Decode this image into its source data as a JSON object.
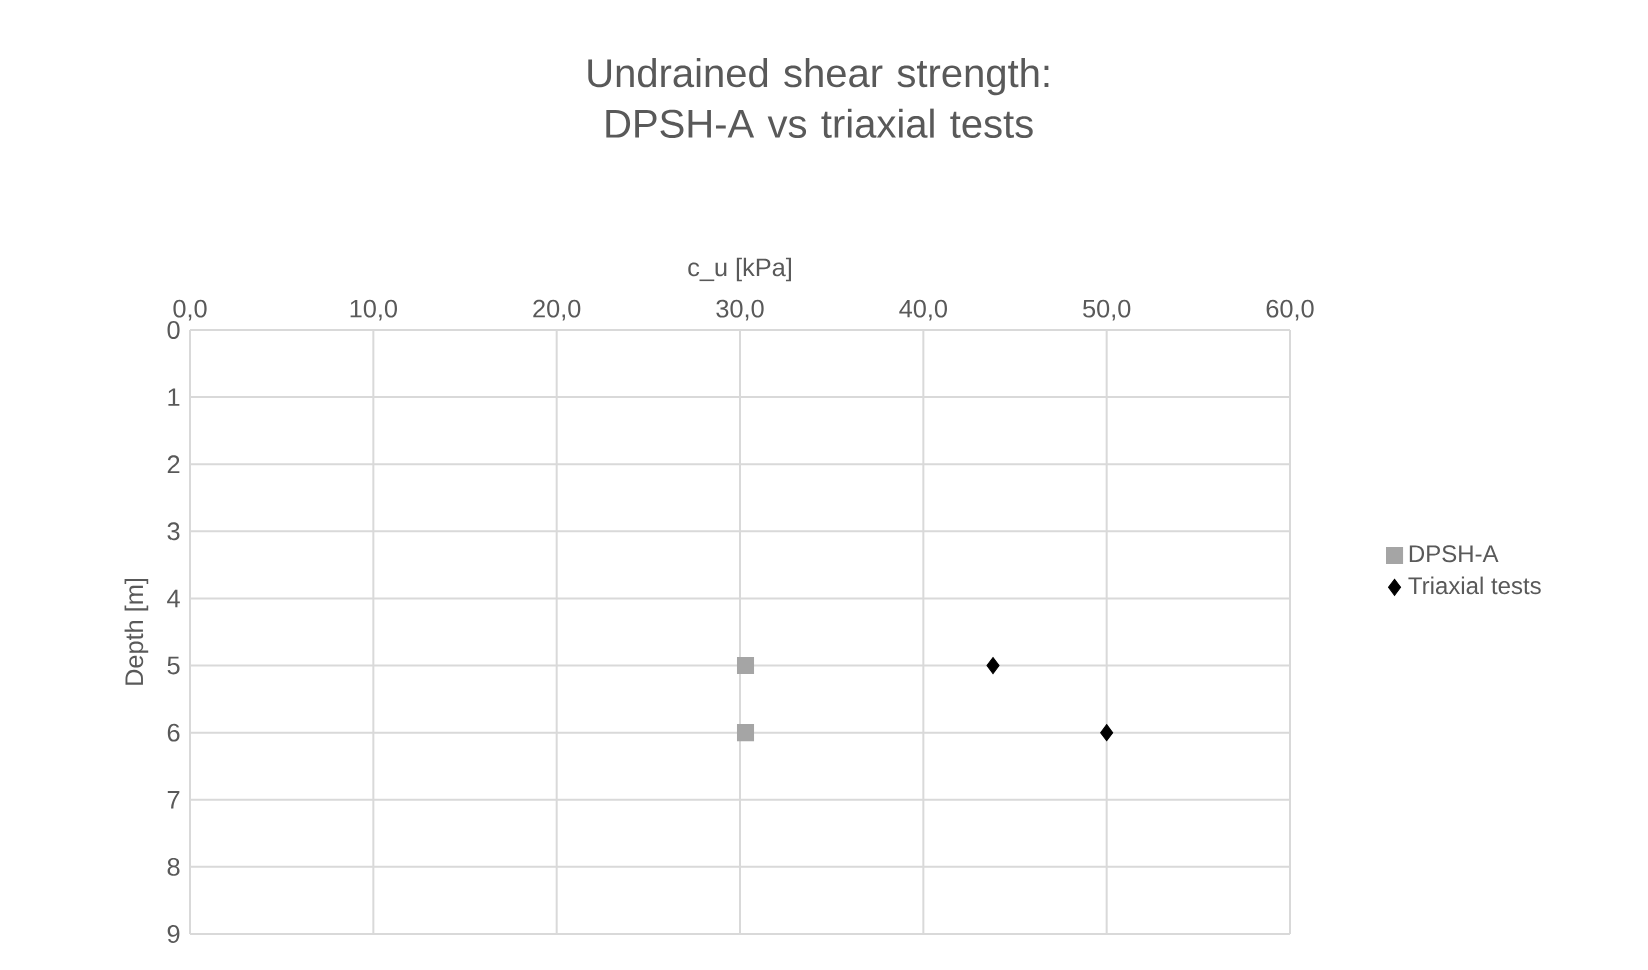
{
  "chart_data": {
    "type": "scatter",
    "title": "Undrained shear strength: DPSH-A vs triaxial tests",
    "xlabel": "c_u [kPa]",
    "ylabel": "Depth [m]",
    "series": [
      {
        "name": "DPSH-A",
        "color": "#a5a5a5",
        "marker": "square",
        "x": [
          30.3,
          30.3
        ],
        "values": [
          5,
          6
        ]
      },
      {
        "name": "Triaxial tests",
        "color": "#000000",
        "marker": "diamond",
        "x": [
          43.8,
          50.0
        ],
        "values": [
          5,
          6
        ]
      }
    ],
    "xlim": [
      0,
      60
    ],
    "xticks": [
      {
        "value": 0,
        "label": "0,0"
      },
      {
        "value": 10,
        "label": "10,0"
      },
      {
        "value": 20,
        "label": "20,0"
      },
      {
        "value": 30,
        "label": "30,0"
      },
      {
        "value": 40,
        "label": "40,0"
      },
      {
        "value": 50,
        "label": "50,0"
      },
      {
        "value": 60,
        "label": "60,0"
      }
    ],
    "ylim": [
      9,
      0
    ],
    "yticks": [
      0,
      1,
      2,
      3,
      4,
      5,
      6,
      7,
      8,
      9
    ],
    "grid": true,
    "legend": "right"
  }
}
